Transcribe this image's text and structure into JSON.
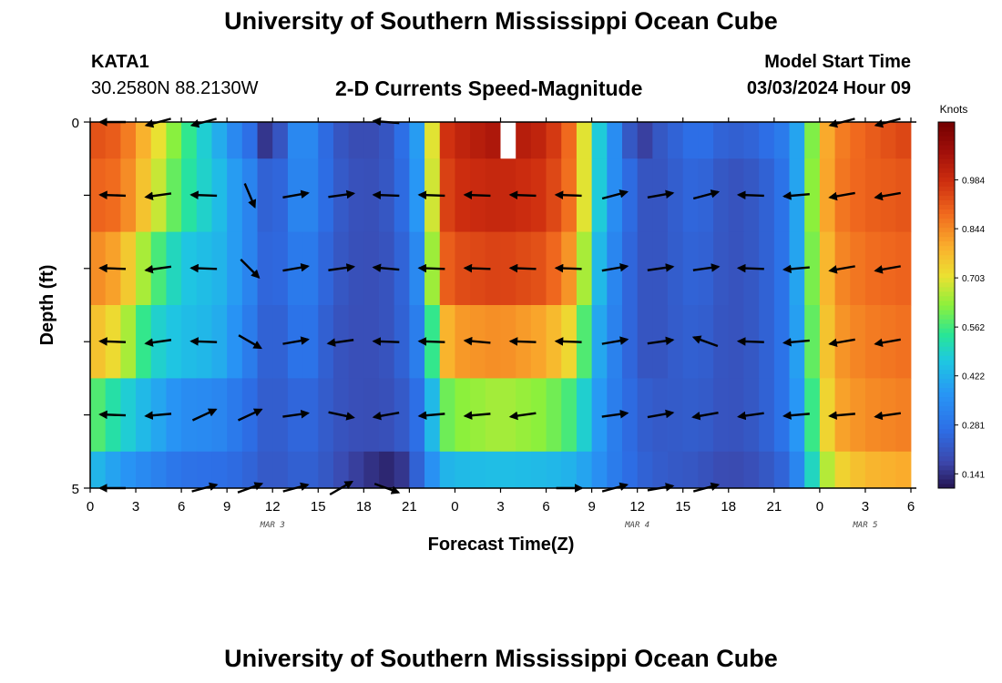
{
  "header": {
    "title": "University of Southern Mississippi Ocean Cube",
    "station_id": "KATA1",
    "station_coords": "30.2580N  88.2130W",
    "plot_title": "2-D Currents Speed-Magnitude",
    "model_start_label": "Model Start Time",
    "model_start_value": "03/03/2024 Hour 09"
  },
  "footer": {
    "title": "University of Southern Mississippi Ocean Cube"
  },
  "chart_data": {
    "type": "heatmap",
    "title": "2-D Currents Speed-Magnitude",
    "xlabel": "Forecast Time(Z)",
    "ylabel": "Depth (ft)",
    "x_tick_labels": [
      "0",
      "3",
      "6",
      "9",
      "12",
      "15",
      "18",
      "21",
      "0",
      "3",
      "6",
      "9",
      "12",
      "15",
      "18",
      "21",
      "0",
      "3",
      "6"
    ],
    "day_labels": [
      {
        "label": "MAR 3",
        "hour": 12
      },
      {
        "label": "MAR 4",
        "hour": 36
      },
      {
        "label": "MAR 5",
        "hour": 51
      }
    ],
    "y_tick_labels": [
      "0",
      "5"
    ],
    "y_range_ft": [
      0,
      5
    ],
    "x_range_hours": [
      0,
      54
    ],
    "colorbar": {
      "title": "Knots",
      "ticks": [
        "0.141",
        "0.281",
        "0.422",
        "0.562",
        "0.703",
        "0.844",
        "0.984"
      ],
      "range": [
        0.1,
        1.15
      ]
    },
    "depth_layers_ft": [
      "0",
      "1",
      "2",
      "3",
      "4",
      "5"
    ],
    "speed_keyframes_hours": [
      0,
      2,
      4,
      6,
      8,
      9,
      10,
      11,
      11.5,
      12,
      13,
      14,
      15,
      16,
      18,
      20,
      21,
      22,
      23,
      24,
      27,
      30,
      32,
      33,
      34,
      35,
      36,
      37,
      38,
      40,
      42,
      44,
      46,
      47,
      48,
      49,
      51,
      54
    ],
    "speed_by_layer_knots": [
      [
        0.93,
        0.9,
        0.75,
        0.58,
        0.45,
        0.38,
        0.3,
        0.24,
        0.15,
        0.12,
        0.3,
        0.37,
        0.3,
        0.22,
        0.18,
        0.22,
        0.32,
        0.45,
        0.95,
        1.0,
        1.05,
        1.0,
        0.85,
        0.55,
        0.4,
        0.3,
        0.13,
        0.2,
        0.23,
        0.28,
        0.23,
        0.25,
        0.32,
        0.48,
        0.75,
        0.85,
        0.9,
        0.95
      ],
      [
        0.9,
        0.88,
        0.72,
        0.55,
        0.47,
        0.42,
        0.35,
        0.3,
        0.24,
        0.2,
        0.3,
        0.35,
        0.3,
        0.23,
        0.19,
        0.22,
        0.3,
        0.45,
        0.92,
        0.98,
        1.0,
        0.97,
        0.85,
        0.55,
        0.4,
        0.3,
        0.22,
        0.2,
        0.22,
        0.26,
        0.2,
        0.22,
        0.3,
        0.5,
        0.75,
        0.86,
        0.9,
        0.92
      ],
      [
        0.85,
        0.8,
        0.6,
        0.47,
        0.44,
        0.42,
        0.35,
        0.3,
        0.25,
        0.23,
        0.28,
        0.32,
        0.28,
        0.22,
        0.19,
        0.21,
        0.28,
        0.4,
        0.88,
        0.93,
        0.95,
        0.92,
        0.8,
        0.5,
        0.38,
        0.28,
        0.22,
        0.2,
        0.22,
        0.25,
        0.2,
        0.22,
        0.3,
        0.5,
        0.72,
        0.84,
        0.88,
        0.9
      ],
      [
        0.78,
        0.7,
        0.5,
        0.45,
        0.43,
        0.4,
        0.33,
        0.28,
        0.24,
        0.22,
        0.26,
        0.3,
        0.26,
        0.21,
        0.19,
        0.21,
        0.27,
        0.35,
        0.75,
        0.82,
        0.84,
        0.8,
        0.7,
        0.45,
        0.36,
        0.28,
        0.22,
        0.2,
        0.22,
        0.24,
        0.2,
        0.22,
        0.3,
        0.48,
        0.7,
        0.82,
        0.86,
        0.88
      ],
      [
        0.6,
        0.5,
        0.42,
        0.35,
        0.34,
        0.32,
        0.28,
        0.25,
        0.23,
        0.22,
        0.24,
        0.26,
        0.24,
        0.21,
        0.19,
        0.2,
        0.24,
        0.3,
        0.58,
        0.62,
        0.65,
        0.62,
        0.55,
        0.42,
        0.34,
        0.28,
        0.24,
        0.22,
        0.22,
        0.23,
        0.2,
        0.22,
        0.3,
        0.45,
        0.66,
        0.8,
        0.84,
        0.86
      ],
      [
        0.45,
        0.38,
        0.33,
        0.28,
        0.27,
        0.27,
        0.25,
        0.24,
        0.22,
        0.21,
        0.23,
        0.24,
        0.23,
        0.2,
        0.15,
        0.12,
        0.18,
        0.3,
        0.42,
        0.44,
        0.45,
        0.44,
        0.42,
        0.38,
        0.33,
        0.28,
        0.25,
        0.23,
        0.22,
        0.21,
        0.18,
        0.2,
        0.26,
        0.4,
        0.6,
        0.72,
        0.78,
        0.8
      ]
    ],
    "missing_cells": [
      {
        "hour": 27,
        "layer": 0
      }
    ],
    "vector_hours": [
      1.5,
      4.5,
      7.5,
      10.5,
      13.5,
      16.5,
      19.5,
      22.5,
      25.5,
      28.5,
      31.5,
      34.5,
      37.5,
      40.5,
      43.5,
      46.5,
      49.5,
      52.5
    ],
    "vector_depths_ft": [
      0,
      1,
      2,
      3,
      4,
      5
    ],
    "vector_angles_deg": [
      [
        180,
        195,
        195,
        null,
        null,
        null,
        175,
        null,
        null,
        null,
        null,
        null,
        null,
        null,
        null,
        null,
        195,
        195
      ],
      [
        178,
        188,
        178,
        293,
        10,
        8,
        178,
        178,
        178,
        178,
        178,
        15,
        10,
        15,
        178,
        185,
        190,
        190
      ],
      [
        178,
        188,
        178,
        315,
        10,
        8,
        175,
        178,
        178,
        178,
        178,
        10,
        8,
        8,
        178,
        185,
        190,
        190
      ],
      [
        178,
        188,
        178,
        330,
        10,
        188,
        178,
        178,
        175,
        178,
        178,
        10,
        8,
        160,
        178,
        185,
        190,
        190
      ],
      [
        178,
        185,
        25,
        25,
        8,
        348,
        190,
        185,
        185,
        188,
        null,
        8,
        10,
        190,
        188,
        185,
        185,
        188
      ],
      [
        180,
        null,
        15,
        20,
        15,
        30,
        340,
        null,
        null,
        null,
        0,
        15,
        10,
        15,
        null,
        null,
        null,
        null
      ]
    ]
  }
}
